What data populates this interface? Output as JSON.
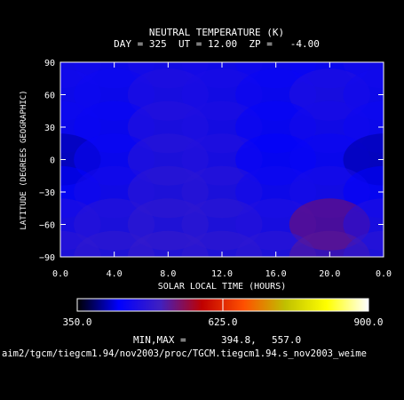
{
  "chart_data": {
    "type": "heatmap",
    "title": "NEUTRAL TEMPERATURE (K)",
    "subtitle": "DAY = 325  UT = 12.00  ZP =   -4.00",
    "xlabel": "SOLAR LOCAL TIME (HOURS)",
    "ylabel": "LATITUDE (DEGREES GEOGRAPHIC)",
    "xlim": [
      0,
      24
    ],
    "ylim": [
      -90,
      90
    ],
    "x_ticks": [
      "0.0",
      "4.0",
      "8.0",
      "12.0",
      "16.0",
      "20.0",
      "0.0"
    ],
    "y_ticks": [
      "90",
      "60",
      "30",
      "0",
      "−30",
      "−60",
      "−90"
    ],
    "colorbar": {
      "min": 350.0,
      "max": 900.0,
      "labels": [
        "350.0",
        "625.0",
        "900.0"
      ],
      "colors": [
        "#000000",
        "#0000ff",
        "#4020c0",
        "#c00000",
        "#ff5000",
        "#c0c000",
        "#ffff00",
        "#ffffff"
      ]
    },
    "grid": false,
    "data_range": {
      "min": 394.8,
      "max": 557.0
    },
    "minmax_label": "MIN,MAX =",
    "min_text": "394.8,",
    "max_text": "557.0",
    "file_path": "aim2/tgcm/tiegcm1.94/nov2003/proc/TGCM.tiegcm1.94.s_nov2003_weime",
    "field": {
      "x": [
        0,
        4,
        8,
        12,
        16,
        20,
        24
      ],
      "y": [
        90,
        60,
        30,
        0,
        -30,
        -60,
        -90
      ],
      "values": [
        [
          455,
          450,
          460,
          455,
          445,
          440,
          455
        ],
        [
          450,
          445,
          470,
          460,
          440,
          470,
          450
        ],
        [
          445,
          440,
          475,
          465,
          435,
          455,
          445
        ],
        [
          400,
          440,
          480,
          470,
          430,
          440,
          400
        ],
        [
          430,
          455,
          485,
          480,
          450,
          460,
          430
        ],
        [
          470,
          480,
          490,
          485,
          470,
          545,
          470
        ],
        [
          485,
          490,
          495,
          490,
          485,
          525,
          485
        ]
      ]
    }
  }
}
